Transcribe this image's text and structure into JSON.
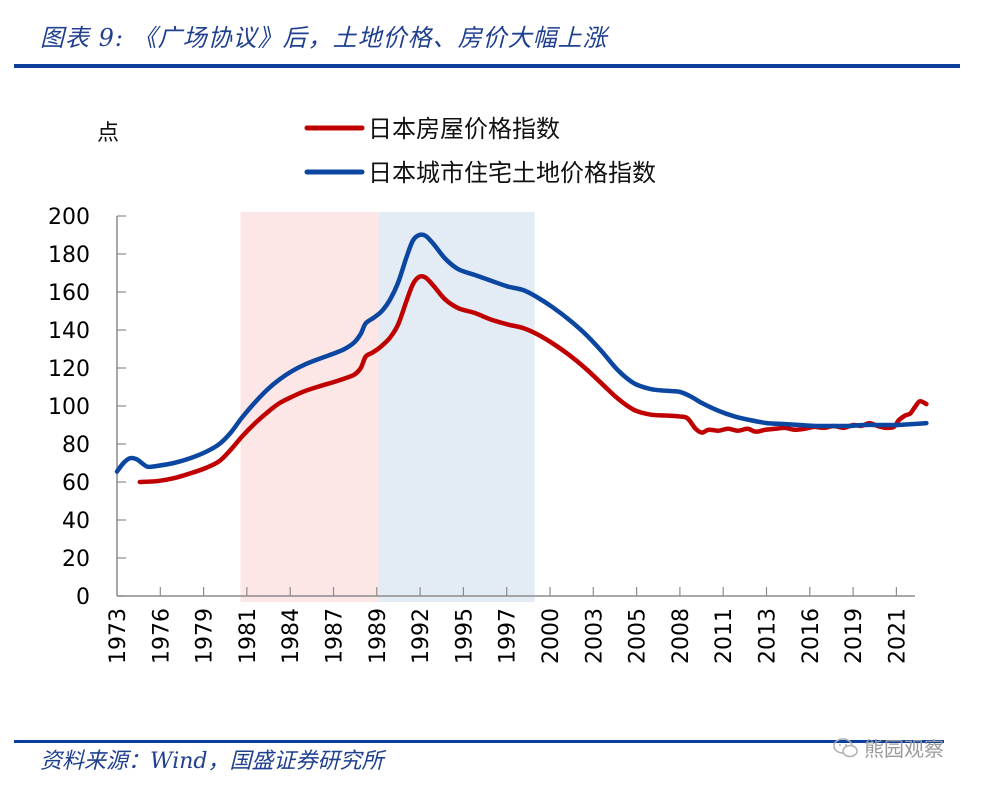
{
  "header": {
    "title": "图表 9: 《广场协议》后，土地价格、房价大幅上涨"
  },
  "footer": {
    "source": "资料来源：Wind，国盛证券研究所",
    "watermark": "熊园观察"
  },
  "chart_data": {
    "type": "line",
    "title": "图表 9: 《广场协议》后，土地价格、房价大幅上涨",
    "ylabel": "点",
    "xlabel": "",
    "ylim": [
      0,
      200
    ],
    "yticks": [
      0,
      20,
      40,
      60,
      80,
      100,
      120,
      140,
      160,
      180,
      200
    ],
    "xlim": [
      1973.0,
      2022.1
    ],
    "xtick_labels": [
      "1973",
      "1976",
      "1979",
      "1981",
      "1984",
      "1987",
      "1989",
      "1992",
      "1995",
      "1997",
      "2000",
      "2003",
      "2005",
      "2008",
      "2011",
      "2013",
      "2016",
      "2019",
      "2021"
    ],
    "grid": false,
    "legend_position": "top-center",
    "shaded_regions": [
      {
        "from": 1980.6,
        "to": 1989.1,
        "color": "#fde6e6"
      },
      {
        "from": 1989.1,
        "to": 1998.7,
        "color": "#e3ebf5"
      }
    ],
    "series": [
      {
        "name": "日本房屋价格指数",
        "color": "#c00000",
        "points": [
          [
            1974.4,
            60
          ],
          [
            1975.5,
            60.5
          ],
          [
            1976.5,
            62
          ],
          [
            1977.5,
            64.5
          ],
          [
            1978.5,
            67.5
          ],
          [
            1979.3,
            71
          ],
          [
            1980.0,
            77
          ],
          [
            1980.7,
            84
          ],
          [
            1981.5,
            91
          ],
          [
            1982.3,
            97
          ],
          [
            1983.0,
            101.5
          ],
          [
            1983.8,
            105
          ],
          [
            1984.6,
            108
          ],
          [
            1985.5,
            110.5
          ],
          [
            1986.3,
            112.5
          ],
          [
            1987.0,
            114.5
          ],
          [
            1987.6,
            116.5
          ],
          [
            1988.0,
            120
          ],
          [
            1988.3,
            126
          ],
          [
            1988.7,
            128
          ],
          [
            1989.2,
            131
          ],
          [
            1989.8,
            136
          ],
          [
            1990.3,
            143
          ],
          [
            1990.8,
            155
          ],
          [
            1991.2,
            164
          ],
          [
            1991.6,
            168
          ],
          [
            1992.0,
            167.5
          ],
          [
            1992.5,
            163
          ],
          [
            1993.2,
            156
          ],
          [
            1994.0,
            151.5
          ],
          [
            1995.0,
            149
          ],
          [
            1996.0,
            145.5
          ],
          [
            1997.0,
            143
          ],
          [
            1998.0,
            141
          ],
          [
            1998.8,
            138
          ],
          [
            1999.8,
            133
          ],
          [
            2000.8,
            127
          ],
          [
            2001.8,
            120
          ],
          [
            2002.8,
            112
          ],
          [
            2003.8,
            104
          ],
          [
            2004.8,
            98
          ],
          [
            2005.8,
            95.5
          ],
          [
            2006.8,
            95
          ],
          [
            2007.6,
            94.5
          ],
          [
            2008.1,
            93.5
          ],
          [
            2008.6,
            88
          ],
          [
            2009.0,
            86
          ],
          [
            2009.4,
            87.5
          ],
          [
            2010.0,
            87
          ],
          [
            2010.6,
            88
          ],
          [
            2011.2,
            87
          ],
          [
            2011.8,
            88
          ],
          [
            2012.3,
            86.5
          ],
          [
            2012.9,
            87.5
          ],
          [
            2013.5,
            88
          ],
          [
            2014.1,
            88.5
          ],
          [
            2014.7,
            87.5
          ],
          [
            2015.3,
            88
          ],
          [
            2015.9,
            89
          ],
          [
            2016.5,
            88.5
          ],
          [
            2017.1,
            89.5
          ],
          [
            2017.7,
            88.5
          ],
          [
            2018.3,
            90
          ],
          [
            2018.8,
            89.5
          ],
          [
            2019.3,
            91
          ],
          [
            2019.8,
            89.5
          ],
          [
            2020.3,
            88.5
          ],
          [
            2020.8,
            89
          ],
          [
            2021.1,
            92.5
          ],
          [
            2021.5,
            95
          ],
          [
            2021.8,
            96
          ],
          [
            2022.1,
            99.5
          ],
          [
            2022.4,
            102.5
          ],
          [
            2022.8,
            101
          ]
        ]
      },
      {
        "name": "日本城市住宅土地价格指数",
        "color": "#0b47a1",
        "points": [
          [
            1973.0,
            65.5
          ],
          [
            1973.4,
            70
          ],
          [
            1973.8,
            72.5
          ],
          [
            1974.2,
            72
          ],
          [
            1974.6,
            69.5
          ],
          [
            1974.9,
            68
          ],
          [
            1975.5,
            68.5
          ],
          [
            1976.5,
            70
          ],
          [
            1977.5,
            72.5
          ],
          [
            1978.5,
            76
          ],
          [
            1979.3,
            80
          ],
          [
            1980.0,
            86
          ],
          [
            1980.7,
            94
          ],
          [
            1981.5,
            102
          ],
          [
            1982.3,
            109
          ],
          [
            1983.0,
            114
          ],
          [
            1983.8,
            118.5
          ],
          [
            1984.6,
            122
          ],
          [
            1985.5,
            125
          ],
          [
            1986.3,
            127.5
          ],
          [
            1987.0,
            130
          ],
          [
            1987.6,
            133.5
          ],
          [
            1988.0,
            138
          ],
          [
            1988.3,
            143.5
          ],
          [
            1988.8,
            146.5
          ],
          [
            1989.3,
            150
          ],
          [
            1989.8,
            156
          ],
          [
            1990.3,
            165
          ],
          [
            1990.8,
            178
          ],
          [
            1991.2,
            187
          ],
          [
            1991.6,
            190
          ],
          [
            1992.0,
            189.5
          ],
          [
            1992.5,
            185
          ],
          [
            1993.2,
            177.5
          ],
          [
            1994.0,
            172
          ],
          [
            1995.0,
            169
          ],
          [
            1996.0,
            166
          ],
          [
            1997.0,
            163
          ],
          [
            1998.0,
            161
          ],
          [
            1998.8,
            157.5
          ],
          [
            1999.8,
            152
          ],
          [
            2000.8,
            145.5
          ],
          [
            2001.8,
            138
          ],
          [
            2002.8,
            129
          ],
          [
            2003.8,
            119
          ],
          [
            2004.8,
            112
          ],
          [
            2005.8,
            109
          ],
          [
            2006.8,
            108
          ],
          [
            2007.6,
            107.5
          ],
          [
            2008.3,
            105
          ],
          [
            2009.0,
            101.5
          ],
          [
            2010.0,
            97.5
          ],
          [
            2011.0,
            94.5
          ],
          [
            2012.0,
            92.5
          ],
          [
            2013.0,
            91
          ],
          [
            2014.0,
            90.5
          ],
          [
            2015.0,
            90
          ],
          [
            2016.0,
            89.5
          ],
          [
            2017.0,
            89.5
          ],
          [
            2018.0,
            89.5
          ],
          [
            2019.0,
            90
          ],
          [
            2020.0,
            90
          ],
          [
            2021.0,
            90
          ],
          [
            2022.0,
            90.5
          ],
          [
            2022.8,
            91
          ]
        ]
      }
    ]
  }
}
